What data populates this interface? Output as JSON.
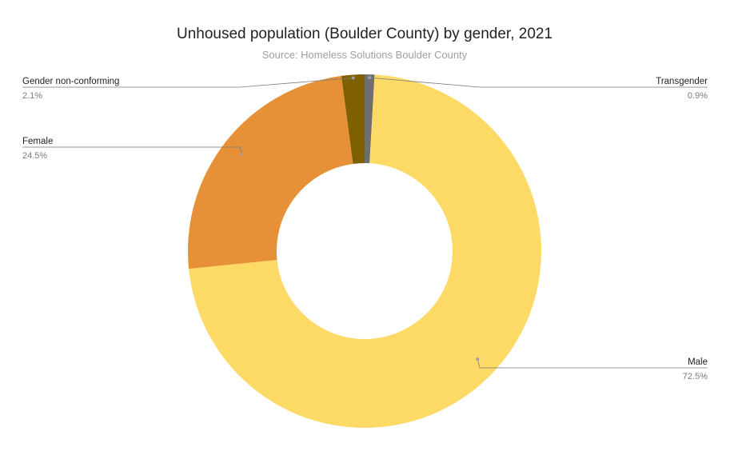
{
  "chart_data": {
    "type": "pie",
    "donut": true,
    "title": "Unhoused population (Boulder County) by gender, 2021",
    "subtitle": "Source: Homeless Solutions Boulder County",
    "slices": [
      {
        "label": "Transgender",
        "value": 0.9,
        "value_label": "0.9%",
        "color": "#6e6e6e",
        "label_side": "right"
      },
      {
        "label": "Male",
        "value": 72.5,
        "value_label": "72.5%",
        "color": "#fdd966",
        "label_side": "right"
      },
      {
        "label": "Female",
        "value": 24.5,
        "value_label": "24.5%",
        "color": "#e69138",
        "label_side": "left"
      },
      {
        "label": "Gender non-conforming",
        "value": 2.1,
        "value_label": "2.1%",
        "color": "#7f6000",
        "label_side": "left"
      }
    ],
    "legend": "labels with leader lines"
  }
}
